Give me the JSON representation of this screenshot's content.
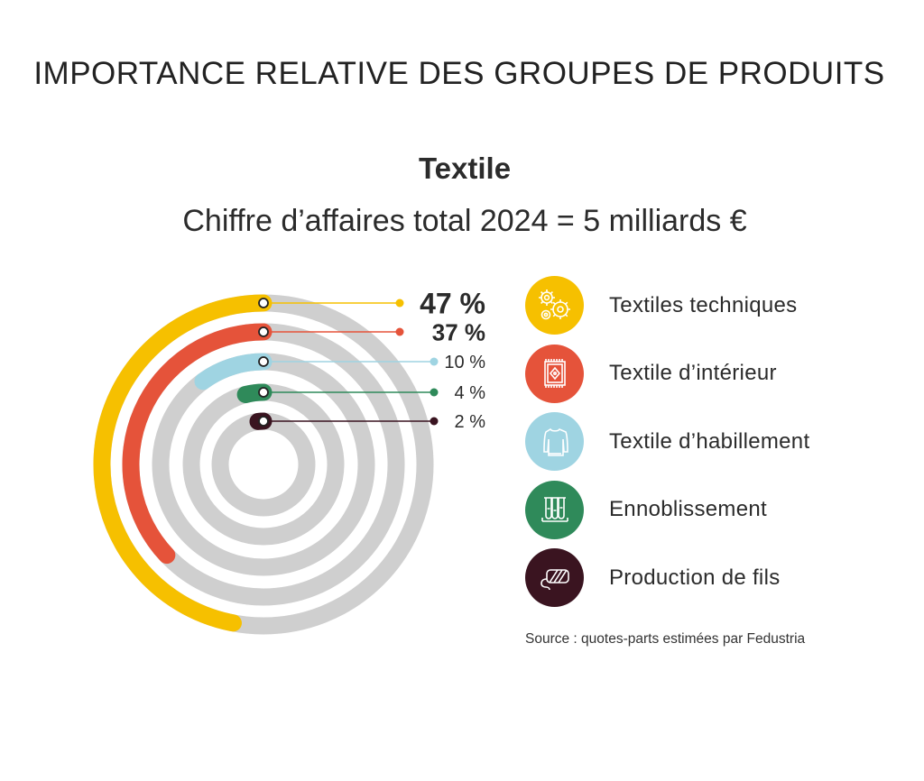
{
  "header": {
    "title": "IMPORTANCE RELATIVE DES GROUPES DE PRODUITS"
  },
  "chart_data": {
    "type": "radial-bar",
    "title": "Textile",
    "subtitle": "Chiffre d’affaires total 2024 = 5 milliards €",
    "unit": "%",
    "track_color": "#cfcfcf",
    "series": [
      {
        "name": "Textiles techniques",
        "value": 47,
        "label": "47 %",
        "color": "#f6c000",
        "icon": "gears-icon"
      },
      {
        "name": "Textile d’intérieur",
        "value": 37,
        "label": "37 %",
        "color": "#e5533a",
        "icon": "carpet-icon"
      },
      {
        "name": "Textile d’habillement",
        "value": 10,
        "label": "10 %",
        "color": "#9fd4e2",
        "icon": "sweater-icon"
      },
      {
        "name": "Ennoblissement",
        "value": 4,
        "label": "4 %",
        "color": "#2f8a5a",
        "icon": "test-tubes-icon"
      },
      {
        "name": "Production de fils",
        "value": 2,
        "label": "2 %",
        "color": "#3a1420",
        "icon": "yarn-spool-icon"
      }
    ]
  },
  "source": "Source : quotes-parts estimées par Fedustria"
}
